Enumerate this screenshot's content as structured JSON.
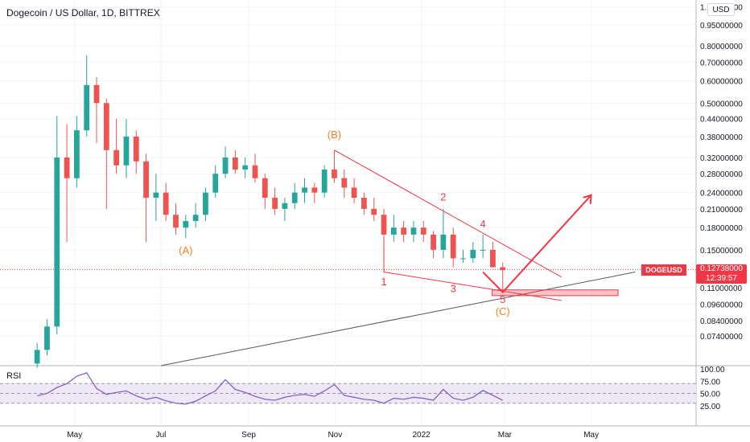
{
  "header": {
    "title": "Dogecoin / US Dollar, 1D, BITTREX",
    "currency_button": "USD"
  },
  "rsi_panel": {
    "label": "RSI"
  },
  "price_badge": {
    "symbol": "DOGEUSD",
    "price": "0.12738000",
    "countdown": "12:39:57"
  },
  "colors": {
    "up_candle": "#26a69a",
    "down_candle": "#ef5350",
    "pattern_line": "#f23645",
    "abc_label": "#f5821f",
    "rsi_line": "#7e57c2",
    "rsi_band": "#ede7f6",
    "trend_line": "#555555"
  },
  "chart_data": {
    "type": "candlestick",
    "price_axis": {
      "scale": "log",
      "ticks": [
        "0.07400000",
        "0.08400000",
        "0.09600000",
        "0.11000000",
        "0.15000000",
        "0.18000000",
        "0.21000000",
        "0.24000000",
        "0.28000000",
        "0.32000000",
        "0.38000000",
        "0.44000000",
        "0.50000000",
        "0.60000000",
        "0.70000000",
        "0.80000000",
        "0.95000000",
        "1.10000000"
      ]
    },
    "time_axis": {
      "ticks": [
        "May",
        "Jul",
        "Sep",
        "Nov",
        "2022",
        "Mar",
        "May"
      ]
    },
    "rsi_axis": {
      "ticks": [
        "100.00",
        "75.00",
        "50.00",
        "25.00"
      ],
      "range": [
        0,
        100
      ]
    },
    "candles": [
      [
        "2021-04-01",
        0.059,
        0.07,
        0.057,
        0.066
      ],
      [
        "2021-04-08",
        0.066,
        0.085,
        0.063,
        0.08
      ],
      [
        "2021-04-15",
        0.08,
        0.45,
        0.075,
        0.32
      ],
      [
        "2021-04-22",
        0.32,
        0.42,
        0.16,
        0.27
      ],
      [
        "2021-04-29",
        0.27,
        0.45,
        0.25,
        0.4
      ],
      [
        "2021-05-06",
        0.4,
        0.74,
        0.38,
        0.58
      ],
      [
        "2021-05-13",
        0.58,
        0.62,
        0.36,
        0.5
      ],
      [
        "2021-05-20",
        0.5,
        0.52,
        0.21,
        0.34
      ],
      [
        "2021-05-27",
        0.34,
        0.44,
        0.28,
        0.3
      ],
      [
        "2021-06-03",
        0.3,
        0.44,
        0.27,
        0.38
      ],
      [
        "2021-06-10",
        0.38,
        0.4,
        0.28,
        0.31
      ],
      [
        "2021-06-17",
        0.31,
        0.33,
        0.16,
        0.23
      ],
      [
        "2021-06-24",
        0.23,
        0.28,
        0.19,
        0.24
      ],
      [
        "2021-07-01",
        0.24,
        0.26,
        0.19,
        0.2
      ],
      [
        "2021-07-08",
        0.2,
        0.22,
        0.17,
        0.18
      ],
      [
        "2021-07-15",
        0.18,
        0.2,
        0.165,
        0.19
      ],
      [
        "2021-07-22",
        0.19,
        0.22,
        0.18,
        0.2
      ],
      [
        "2021-07-29",
        0.2,
        0.25,
        0.19,
        0.24
      ],
      [
        "2021-08-05",
        0.24,
        0.3,
        0.23,
        0.28
      ],
      [
        "2021-08-12",
        0.28,
        0.35,
        0.27,
        0.32
      ],
      [
        "2021-08-19",
        0.32,
        0.34,
        0.28,
        0.29
      ],
      [
        "2021-08-26",
        0.29,
        0.32,
        0.27,
        0.3
      ],
      [
        "2021-09-02",
        0.3,
        0.33,
        0.26,
        0.27
      ],
      [
        "2021-09-09",
        0.27,
        0.28,
        0.21,
        0.23
      ],
      [
        "2021-09-16",
        0.23,
        0.25,
        0.2,
        0.21
      ],
      [
        "2021-09-23",
        0.21,
        0.23,
        0.19,
        0.22
      ],
      [
        "2021-09-30",
        0.22,
        0.26,
        0.21,
        0.24
      ],
      [
        "2021-10-07",
        0.24,
        0.27,
        0.22,
        0.25
      ],
      [
        "2021-10-14",
        0.25,
        0.26,
        0.22,
        0.24
      ],
      [
        "2021-10-21",
        0.24,
        0.3,
        0.23,
        0.29
      ],
      [
        "2021-10-28",
        0.29,
        0.34,
        0.26,
        0.27
      ],
      [
        "2021-11-04",
        0.27,
        0.29,
        0.23,
        0.25
      ],
      [
        "2021-11-11",
        0.25,
        0.27,
        0.22,
        0.23
      ],
      [
        "2021-11-18",
        0.23,
        0.24,
        0.2,
        0.21
      ],
      [
        "2021-11-25",
        0.21,
        0.23,
        0.19,
        0.2
      ],
      [
        "2021-12-02",
        0.2,
        0.21,
        0.13,
        0.17
      ],
      [
        "2021-12-09",
        0.17,
        0.2,
        0.16,
        0.18
      ],
      [
        "2021-12-16",
        0.18,
        0.19,
        0.16,
        0.17
      ],
      [
        "2021-12-23",
        0.17,
        0.19,
        0.16,
        0.18
      ],
      [
        "2021-12-30",
        0.18,
        0.19,
        0.16,
        0.17
      ],
      [
        "2022-01-06",
        0.17,
        0.175,
        0.14,
        0.15
      ],
      [
        "2022-01-13",
        0.15,
        0.21,
        0.14,
        0.17
      ],
      [
        "2022-01-20",
        0.17,
        0.18,
        0.13,
        0.14
      ],
      [
        "2022-01-27",
        0.14,
        0.15,
        0.135,
        0.14
      ],
      [
        "2022-02-03",
        0.14,
        0.16,
        0.135,
        0.15
      ],
      [
        "2022-02-10",
        0.15,
        0.17,
        0.14,
        0.15
      ],
      [
        "2022-02-17",
        0.15,
        0.16,
        0.13,
        0.13
      ],
      [
        "2022-02-24",
        0.13,
        0.135,
        0.105,
        0.127
      ]
    ],
    "current_price": 0.12738,
    "rsi": [
      45,
      50,
      62,
      70,
      85,
      92,
      60,
      48,
      52,
      55,
      45,
      38,
      42,
      35,
      30,
      28,
      34,
      45,
      55,
      78,
      58,
      52,
      44,
      38,
      36,
      42,
      46,
      48,
      44,
      55,
      68,
      46,
      42,
      38,
      36,
      30,
      40,
      38,
      42,
      40,
      36,
      58,
      40,
      36,
      42,
      56,
      46,
      36
    ],
    "annotations": {
      "abc": [
        "(A)",
        "(B)",
        "(C)"
      ],
      "waves": [
        "1",
        "2",
        "3",
        "4",
        "5"
      ]
    }
  }
}
